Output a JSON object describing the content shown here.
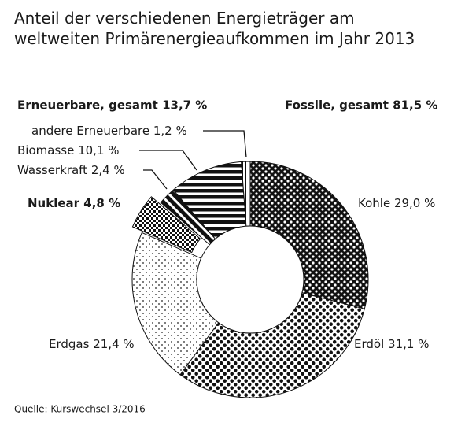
{
  "chart_data": {
    "type": "donut",
    "title": "Anteil der verschiedenen Energieträger am weltweiten Primärenergieaufkommen im Jahr 2013",
    "categories": [
      "Kohle",
      "Erdöl",
      "Erdgas",
      "Nuklear",
      "Wasserkraft",
      "Biomasse",
      "andere Erneuerbare"
    ],
    "values": [
      29.0,
      31.1,
      21.4,
      4.8,
      2.4,
      10.1,
      1.2
    ],
    "value_labels": [
      "29,0 %",
      "31,1 %",
      "21,4 %",
      "4,8 %",
      "2,4 %",
      "10,1 %",
      "1,2 %"
    ],
    "annotations": [
      "Fossile, gesamt 81,5 %",
      "Erneuerbare, gesamt 13,7 %"
    ],
    "source": "Quelle: Kurswechsel 3/2016"
  }
}
